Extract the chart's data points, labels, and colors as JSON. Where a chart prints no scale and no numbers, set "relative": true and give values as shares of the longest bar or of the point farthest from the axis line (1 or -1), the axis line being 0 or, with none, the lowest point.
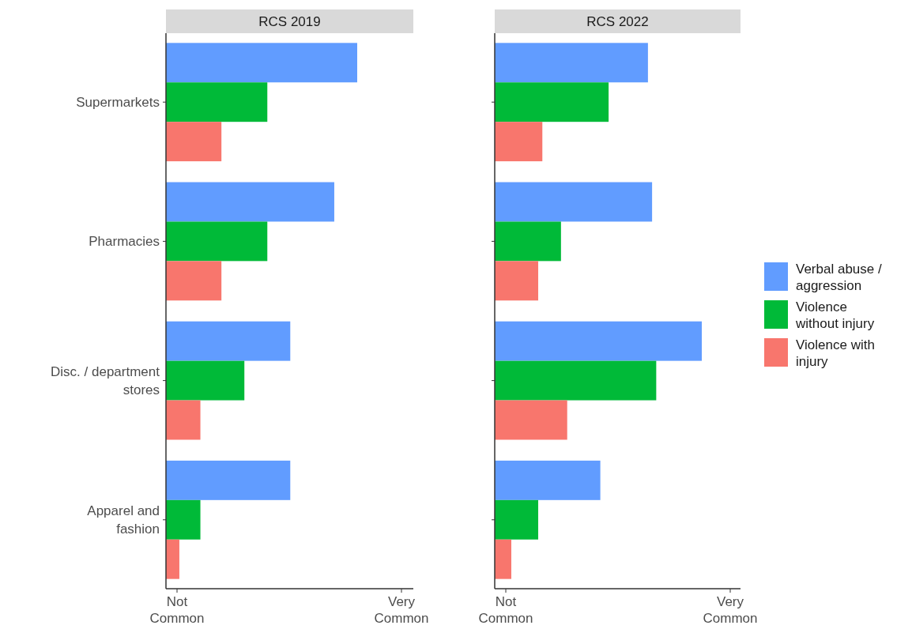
{
  "chart_data": [
    {
      "type": "bar",
      "orientation": "horizontal",
      "relative": true,
      "title": "RCS 2019",
      "categories": [
        "Supermarkets",
        "Pharmacies",
        "Disc. / department stores",
        "Apparel and fashion"
      ],
      "series": [
        {
          "color": "#619cff",
          "values": [
            1,
            0.88,
            0.65,
            0.65
          ]
        },
        {
          "color": "#00ba38",
          "values": [
            0.53,
            0.53,
            0.41,
            0.18
          ]
        },
        {
          "color": "#f8766d",
          "values": [
            0.29,
            0.29,
            0.18,
            0.07
          ]
        }
      ],
      "annotations": [
        "Not Common",
        "Very Common"
      ],
      "grid": false,
      "legend": false
    },
    {
      "type": "bar",
      "orientation": "horizontal",
      "relative": true,
      "title": "RCS 2022",
      "categories": [
        null,
        null,
        null,
        null
      ],
      "series": [
        {
          "name": "Verbal abuse / aggression",
          "color": "#619cff",
          "values": [
            0.74,
            0.76,
            1,
            0.51
          ]
        },
        {
          "name": "Violence without injury",
          "color": "#00ba38",
          "values": [
            0.55,
            0.32,
            0.78,
            0.21
          ]
        },
        {
          "name": "Violence with injury",
          "color": "#f8766d",
          "values": [
            0.23,
            0.21,
            0.35,
            0.08
          ]
        }
      ],
      "annotations": [
        "Not Common",
        "Very Common"
      ],
      "grid": false,
      "legend": "right"
    }
  ]
}
